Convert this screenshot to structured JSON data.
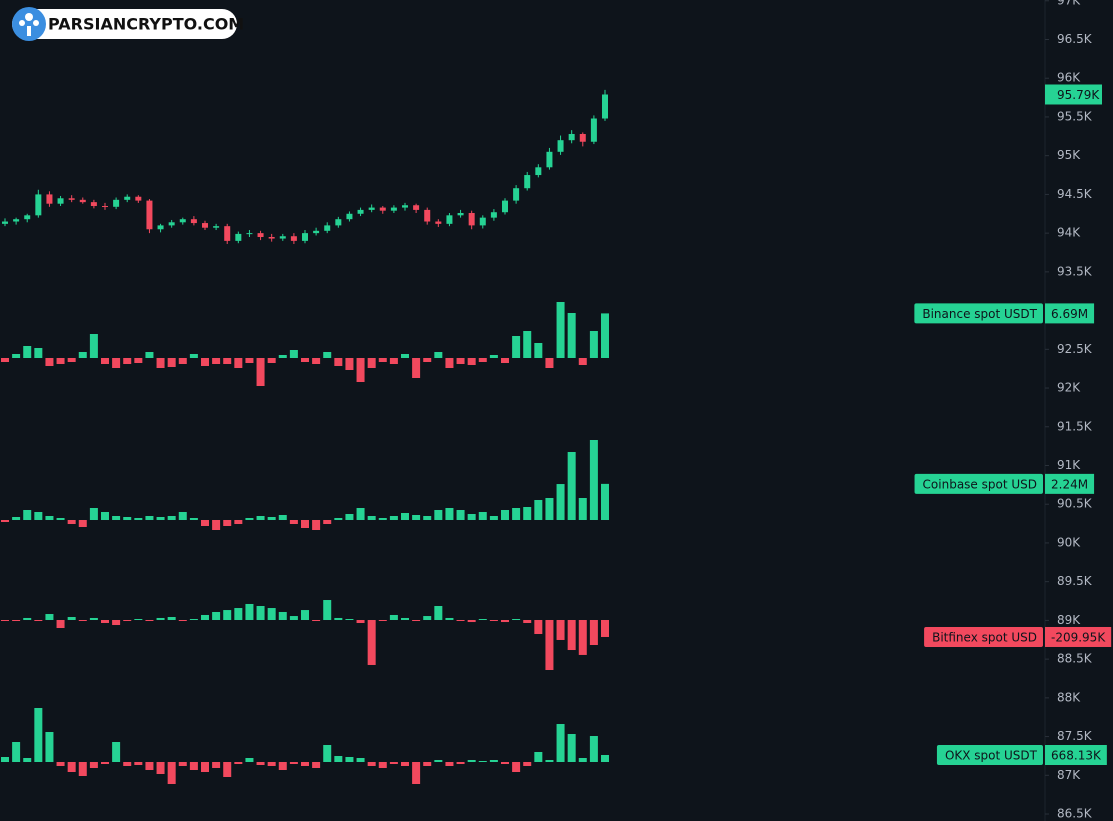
{
  "chart_data": {
    "type": "candlestick",
    "watermark": "PARSIANCRYPTO.COM",
    "up_color": "#26d394",
    "down_color": "#f2495e",
    "ylim": [
      86410,
      97010
    ],
    "yticks": [
      {
        "value": 97000,
        "label": "97K"
      },
      {
        "value": 96500,
        "label": "96.5K"
      },
      {
        "value": 96000,
        "label": "96K"
      },
      {
        "value": 95500,
        "label": "95.5K"
      },
      {
        "value": 95000,
        "label": "95K"
      },
      {
        "value": 94500,
        "label": "94.5K"
      },
      {
        "value": 94000,
        "label": "94K"
      },
      {
        "value": 93500,
        "label": "93.5K"
      },
      {
        "value": 93000,
        "label": "93K"
      },
      {
        "value": 92500,
        "label": "92.5K"
      },
      {
        "value": 92000,
        "label": "92K"
      },
      {
        "value": 91500,
        "label": "91.5K"
      },
      {
        "value": 91000,
        "label": "91K"
      },
      {
        "value": 90500,
        "label": "90.5K"
      },
      {
        "value": 90000,
        "label": "90K"
      },
      {
        "value": 89500,
        "label": "89.5K"
      },
      {
        "value": 89000,
        "label": "89K"
      },
      {
        "value": 88500,
        "label": "88.5K"
      },
      {
        "value": 88000,
        "label": "88K"
      },
      {
        "value": 87500,
        "label": "87.5K"
      },
      {
        "value": 87000,
        "label": "87K"
      },
      {
        "value": 86500,
        "label": "86.5K"
      }
    ],
    "open": [
      94120,
      94150,
      94180,
      94230,
      94500,
      94380,
      94450,
      94430,
      94400,
      94350,
      94340,
      94430,
      94470,
      94420,
      94050,
      94100,
      94140,
      94180,
      94130,
      94070,
      94090,
      93900,
      93990,
      94000,
      93950,
      93930,
      93960,
      93900,
      94000,
      94030,
      94100,
      94180,
      94250,
      94300,
      94330,
      94290,
      94330,
      94360,
      94300,
      94150,
      94120,
      94230,
      94260,
      94100,
      94200,
      94270,
      94420,
      94580,
      94750,
      94850,
      95050,
      95200,
      95280,
      95180,
      95480
    ],
    "high": [
      94190,
      94200,
      94250,
      94560,
      94540,
      94480,
      94490,
      94460,
      94430,
      94390,
      94460,
      94500,
      94490,
      94440,
      94120,
      94170,
      94200,
      94220,
      94160,
      94120,
      94120,
      94020,
      94040,
      94030,
      93990,
      93990,
      94000,
      94040,
      94070,
      94140,
      94210,
      94280,
      94330,
      94370,
      94350,
      94360,
      94390,
      94380,
      94330,
      94180,
      94260,
      94300,
      94290,
      94230,
      94310,
      94450,
      94620,
      94790,
      94890,
      95100,
      95260,
      95330,
      95300,
      95520,
      95850
    ],
    "low": [
      94090,
      94110,
      94140,
      94200,
      94340,
      94350,
      94400,
      94380,
      94320,
      94300,
      94310,
      94400,
      94390,
      94000,
      94010,
      94070,
      94110,
      94100,
      94040,
      94040,
      93860,
      93870,
      93950,
      93910,
      93890,
      93900,
      93860,
      93870,
      93970,
      94000,
      94070,
      94150,
      94220,
      94270,
      94250,
      94260,
      94290,
      94260,
      94110,
      94080,
      94090,
      94200,
      94050,
      94060,
      94160,
      94240,
      94380,
      94550,
      94720,
      94820,
      95010,
      95160,
      95120,
      95150,
      95450
    ],
    "close": [
      94150,
      94180,
      94230,
      94500,
      94380,
      94450,
      94430,
      94400,
      94350,
      94340,
      94430,
      94470,
      94420,
      94050,
      94100,
      94140,
      94180,
      94130,
      94070,
      94090,
      93900,
      93990,
      94000,
      93950,
      93930,
      93960,
      93900,
      94000,
      94030,
      94100,
      94180,
      94250,
      94300,
      94330,
      94290,
      94330,
      94360,
      94300,
      94150,
      94120,
      94230,
      94260,
      94100,
      94200,
      94270,
      94420,
      94580,
      94750,
      94850,
      95050,
      95200,
      95280,
      95180,
      95480,
      95790
    ],
    "last_label": "95.79K",
    "panels": [
      {
        "type": "bar",
        "name": "Binance spot USDT",
        "last_label": "6.69M",
        "values": [
          -600000,
          600000,
          1800000,
          1500000,
          -1200000,
          -900000,
          -600000,
          900000,
          3600000,
          -900000,
          -1500000,
          -900000,
          -750000,
          900000,
          -1500000,
          -1350000,
          -900000,
          600000,
          -1200000,
          -900000,
          -900000,
          -1500000,
          -750000,
          -4200000,
          -750000,
          450000,
          1200000,
          -600000,
          -900000,
          900000,
          -1200000,
          -1800000,
          -3600000,
          -1500000,
          -600000,
          -900000,
          600000,
          -3000000,
          -600000,
          900000,
          -1500000,
          -900000,
          -1050000,
          -600000,
          450000,
          -750000,
          3300000,
          4050000,
          2250000,
          -1500000,
          8400000,
          6750000,
          -1050000,
          4050000,
          6690000
        ]
      },
      {
        "type": "bar",
        "name": "Coinbase spot USD",
        "last_label": "2.24M",
        "values": [
          -124000,
          186000,
          620000,
          496000,
          248000,
          124000,
          -248000,
          -434000,
          744000,
          496000,
          248000,
          186000,
          124000,
          248000,
          186000,
          248000,
          496000,
          124000,
          -372000,
          -620000,
          -372000,
          -248000,
          124000,
          248000,
          186000,
          310000,
          -248000,
          -496000,
          -620000,
          -248000,
          124000,
          372000,
          744000,
          248000,
          124000,
          248000,
          434000,
          310000,
          248000,
          620000,
          744000,
          620000,
          372000,
          496000,
          248000,
          620000,
          744000,
          806000,
          1240000,
          1364000,
          2230000,
          4216000,
          1364000,
          4960000,
          2240000
        ]
      },
      {
        "type": "bar",
        "name": "Bitfinex spot USD",
        "last_label": "-209.95K",
        "values": [
          -12000,
          -12000,
          25000,
          -12000,
          74000,
          -99000,
          37000,
          -12000,
          25000,
          -37000,
          -62000,
          -12000,
          12000,
          -12000,
          25000,
          37000,
          -12000,
          12000,
          62000,
          99000,
          123000,
          148000,
          198000,
          173000,
          148000,
          99000,
          49000,
          123000,
          -12000,
          247000,
          25000,
          12000,
          -37000,
          -556000,
          -12000,
          62000,
          25000,
          -12000,
          49000,
          173000,
          25000,
          -12000,
          -25000,
          12000,
          -12000,
          -25000,
          12000,
          -37000,
          -173000,
          -618000,
          -247000,
          -371000,
          -432000,
          -309000,
          -209950
        ]
      },
      {
        "type": "bar",
        "name": "OKX spot USDT",
        "last_label": "668.13K",
        "values": [
          477000,
          1908000,
          382000,
          5152000,
          2862000,
          -382000,
          -954000,
          -1336000,
          -572000,
          -191000,
          1908000,
          -382000,
          -286000,
          -763000,
          -1145000,
          -2099000,
          -382000,
          -763000,
          -954000,
          -572000,
          -1431000,
          -191000,
          382000,
          -286000,
          -382000,
          -763000,
          -191000,
          -382000,
          -572000,
          1622000,
          572000,
          477000,
          382000,
          -382000,
          -572000,
          -191000,
          -382000,
          -2099000,
          -382000,
          191000,
          -382000,
          -191000,
          191000,
          95000,
          191000,
          -191000,
          -954000,
          -382000,
          954000,
          191000,
          3625000,
          2671000,
          382000,
          2480000,
          668130
        ]
      }
    ]
  }
}
